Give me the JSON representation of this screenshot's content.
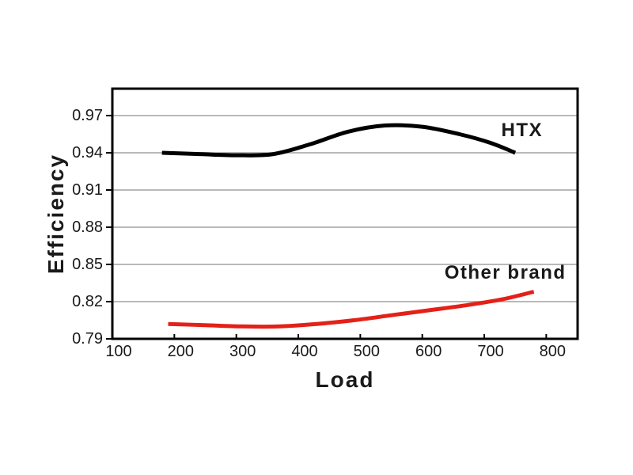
{
  "figure": {
    "background": "#ffffff",
    "axis_color": "#000000",
    "grid_color": "#a2a2a2",
    "tick_label_color": "#1a1a1a"
  },
  "chart_data": {
    "type": "line",
    "title": "",
    "xlabel": "Load",
    "ylabel": "Efficiency",
    "xlim": [
      100,
      850.6
    ],
    "ylim": [
      0.79,
      0.9917
    ],
    "x_ticks": [
      100,
      200,
      300,
      400,
      500,
      600,
      700,
      800
    ],
    "y_ticks": [
      0.79,
      0.82,
      0.85,
      0.88,
      0.91,
      0.94,
      0.97
    ],
    "grid": "horizontal-only",
    "legend": "inline-series-labels",
    "series": [
      {
        "name": "HTX",
        "color": "#000000",
        "x": [
          180,
          240,
          300,
          360,
          420,
          480,
          540,
          600,
          660,
          710,
          750
        ],
        "y": [
          0.94,
          0.939,
          0.938,
          0.939,
          0.947,
          0.957,
          0.962,
          0.961,
          0.955,
          0.948,
          0.94
        ],
        "label_at": {
          "x": 761,
          "y": 0.958
        }
      },
      {
        "name": "Other brand",
        "color": "#e32118",
        "x": [
          190,
          250,
          310,
          370,
          430,
          490,
          550,
          610,
          670,
          730,
          780
        ],
        "y": [
          0.802,
          0.801,
          0.8,
          0.8,
          0.802,
          0.805,
          0.809,
          0.813,
          0.817,
          0.822,
          0.828
        ],
        "label_at": {
          "x": 734,
          "y": 0.843
        }
      }
    ]
  }
}
